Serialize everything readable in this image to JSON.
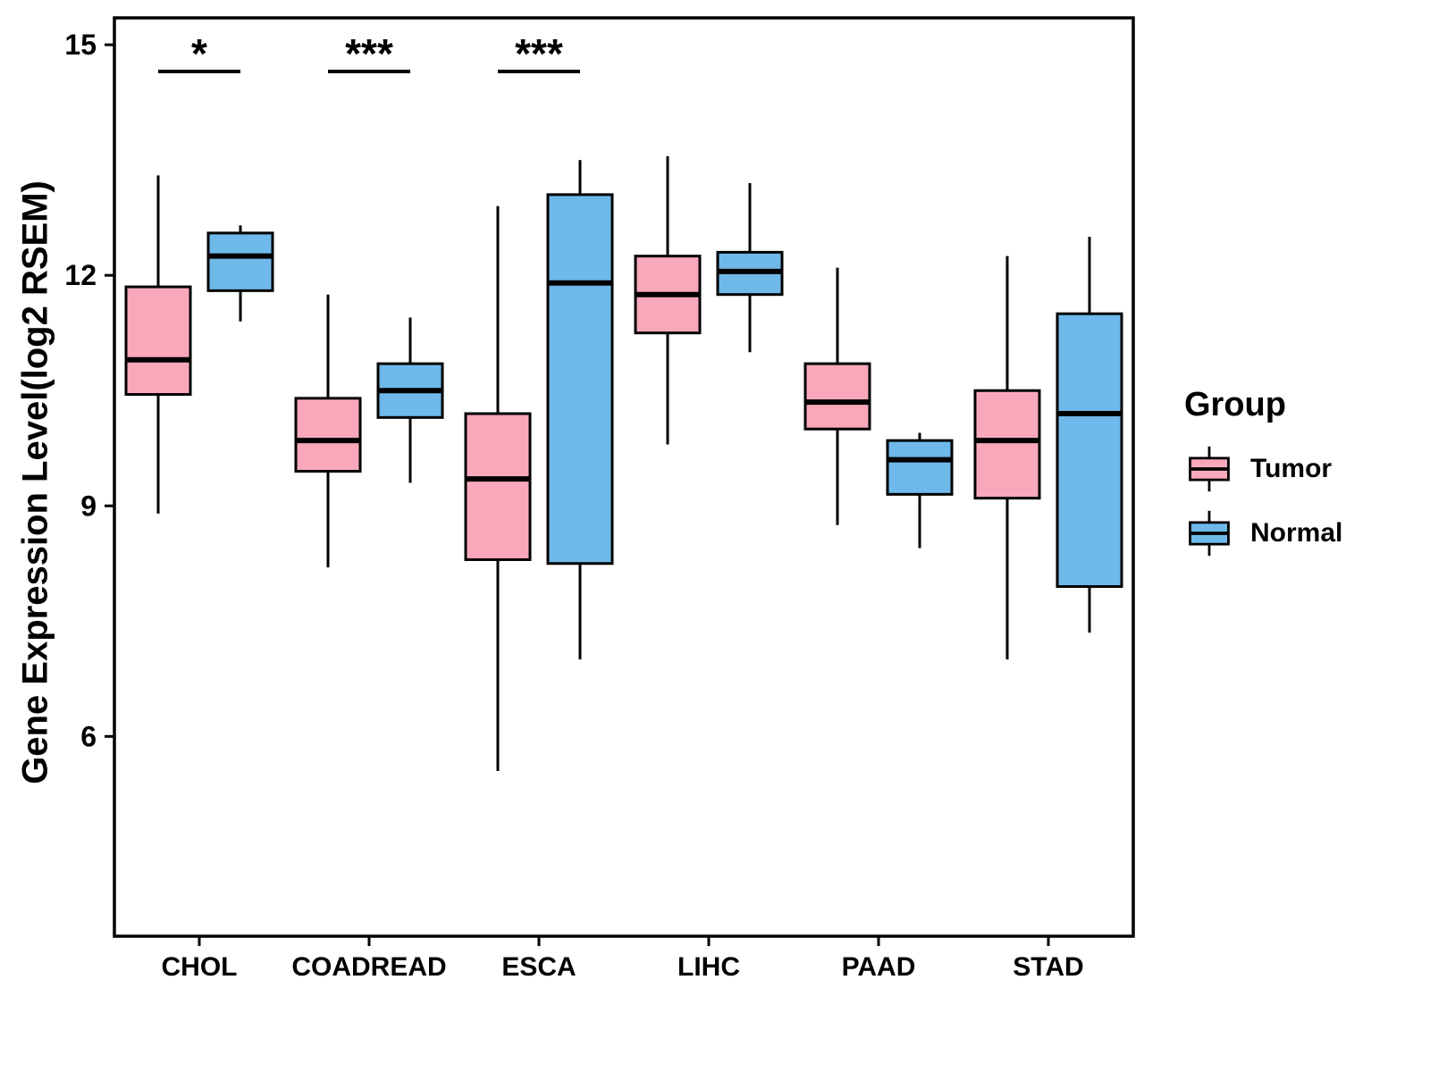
{
  "chart_data": {
    "type": "boxplot",
    "title": "",
    "xlabel": "",
    "ylabel": "Gene Expression Level(log2 RSEM)",
    "ylim": [
      3.4,
      15.35
    ],
    "yticks": [
      6,
      9,
      12,
      15
    ],
    "grid": false,
    "legend_position": "right",
    "legend_title": "Group",
    "categories": [
      "CHOL",
      "COADREAD",
      "ESCA",
      "LIHC",
      "PAAD",
      "STAD"
    ],
    "series": [
      {
        "name": "Tumor",
        "color": "#F9A8BC",
        "boxes": [
          {
            "min": 8.9,
            "q1": 10.45,
            "median": 10.9,
            "q3": 11.85,
            "max": 13.3
          },
          {
            "min": 8.2,
            "q1": 9.45,
            "median": 9.85,
            "q3": 10.4,
            "max": 11.75
          },
          {
            "min": 5.55,
            "q1": 8.3,
            "median": 9.35,
            "q3": 10.2,
            "max": 12.9
          },
          {
            "min": 9.8,
            "q1": 11.25,
            "median": 11.75,
            "q3": 12.25,
            "max": 13.55
          },
          {
            "min": 8.75,
            "q1": 10.0,
            "median": 10.35,
            "q3": 10.85,
            "max": 12.1
          },
          {
            "min": 7.0,
            "q1": 9.1,
            "median": 9.85,
            "q3": 10.5,
            "max": 12.25
          }
        ]
      },
      {
        "name": "Normal",
        "color": "#6FB9EA",
        "boxes": [
          {
            "min": 11.4,
            "q1": 11.8,
            "median": 12.25,
            "q3": 12.55,
            "max": 12.65
          },
          {
            "min": 9.3,
            "q1": 10.15,
            "median": 10.5,
            "q3": 10.85,
            "max": 11.45
          },
          {
            "min": 7.0,
            "q1": 8.25,
            "median": 11.9,
            "q3": 13.05,
            "max": 13.5
          },
          {
            "min": 11.0,
            "q1": 11.75,
            "median": 12.05,
            "q3": 12.3,
            "max": 13.2
          },
          {
            "min": 8.45,
            "q1": 9.15,
            "median": 9.6,
            "q3": 9.85,
            "max": 9.95
          },
          {
            "min": 7.35,
            "q1": 7.95,
            "median": 10.2,
            "q3": 11.5,
            "max": 12.5
          }
        ]
      }
    ],
    "significance": [
      {
        "category": "CHOL",
        "label": "*"
      },
      {
        "category": "COADREAD",
        "label": "***"
      },
      {
        "category": "ESCA",
        "label": "***"
      }
    ],
    "stroke_color": "#000000"
  }
}
